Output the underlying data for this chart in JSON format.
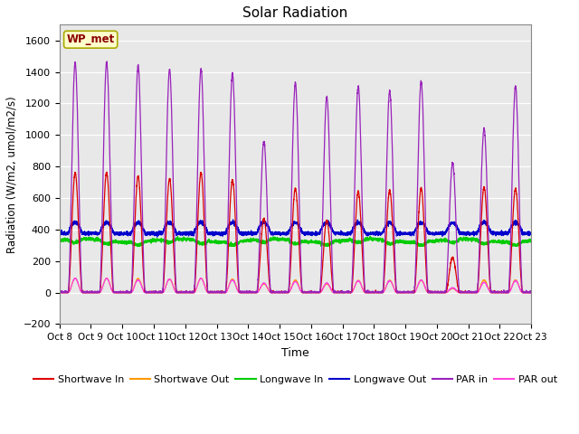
{
  "title": "Solar Radiation",
  "ylabel": "Radiation (W/m2, umol/m2/s)",
  "xlabel": "Time",
  "ylim": [
    -200,
    1700
  ],
  "yticks": [
    -200,
    0,
    200,
    400,
    600,
    800,
    1000,
    1200,
    1400,
    1600
  ],
  "n_days": 15,
  "xtick_labels": [
    "Oct 8",
    "Oct 9",
    "Oct 10",
    "Oct 11",
    "Oct 12",
    "Oct 13",
    "Oct 14",
    "Oct 15",
    "Oct 16",
    "Oct 17",
    "Oct 18",
    "Oct 19",
    "Oct 20",
    "Oct 21",
    "Oct 22",
    "Oct 23"
  ],
  "station_label": "WP_met",
  "background_color": "#e8e8e8",
  "series_colors": {
    "shortwave_in": "#dd0000",
    "shortwave_out": "#ff9900",
    "longwave_in": "#00cc00",
    "longwave_out": "#0000cc",
    "par_in": "#9922bb",
    "par_out": "#ff44dd"
  },
  "legend_labels": [
    "Shortwave In",
    "Shortwave Out",
    "Longwave In",
    "Longwave Out",
    "PAR in",
    "PAR out"
  ],
  "par_peaks": [
    1460,
    1460,
    1440,
    1415,
    1420,
    1390,
    960,
    1330,
    1240,
    1310,
    1280,
    1340,
    820,
    1040,
    1310
  ],
  "sw_peaks": [
    760,
    760,
    740,
    720,
    760,
    715,
    470,
    660,
    460,
    640,
    650,
    660,
    220,
    670,
    660
  ],
  "par_out_peaks": [
    90,
    90,
    80,
    85,
    90,
    80,
    60,
    70,
    60,
    75,
    75,
    80,
    30,
    65,
    75
  ],
  "sw_out_scale": 0.12,
  "lw_in_base": 330,
  "lw_out_base": 375,
  "sunrise": 0.27,
  "sunset": 0.73,
  "figsize": [
    6.4,
    4.8
  ],
  "dpi": 100
}
